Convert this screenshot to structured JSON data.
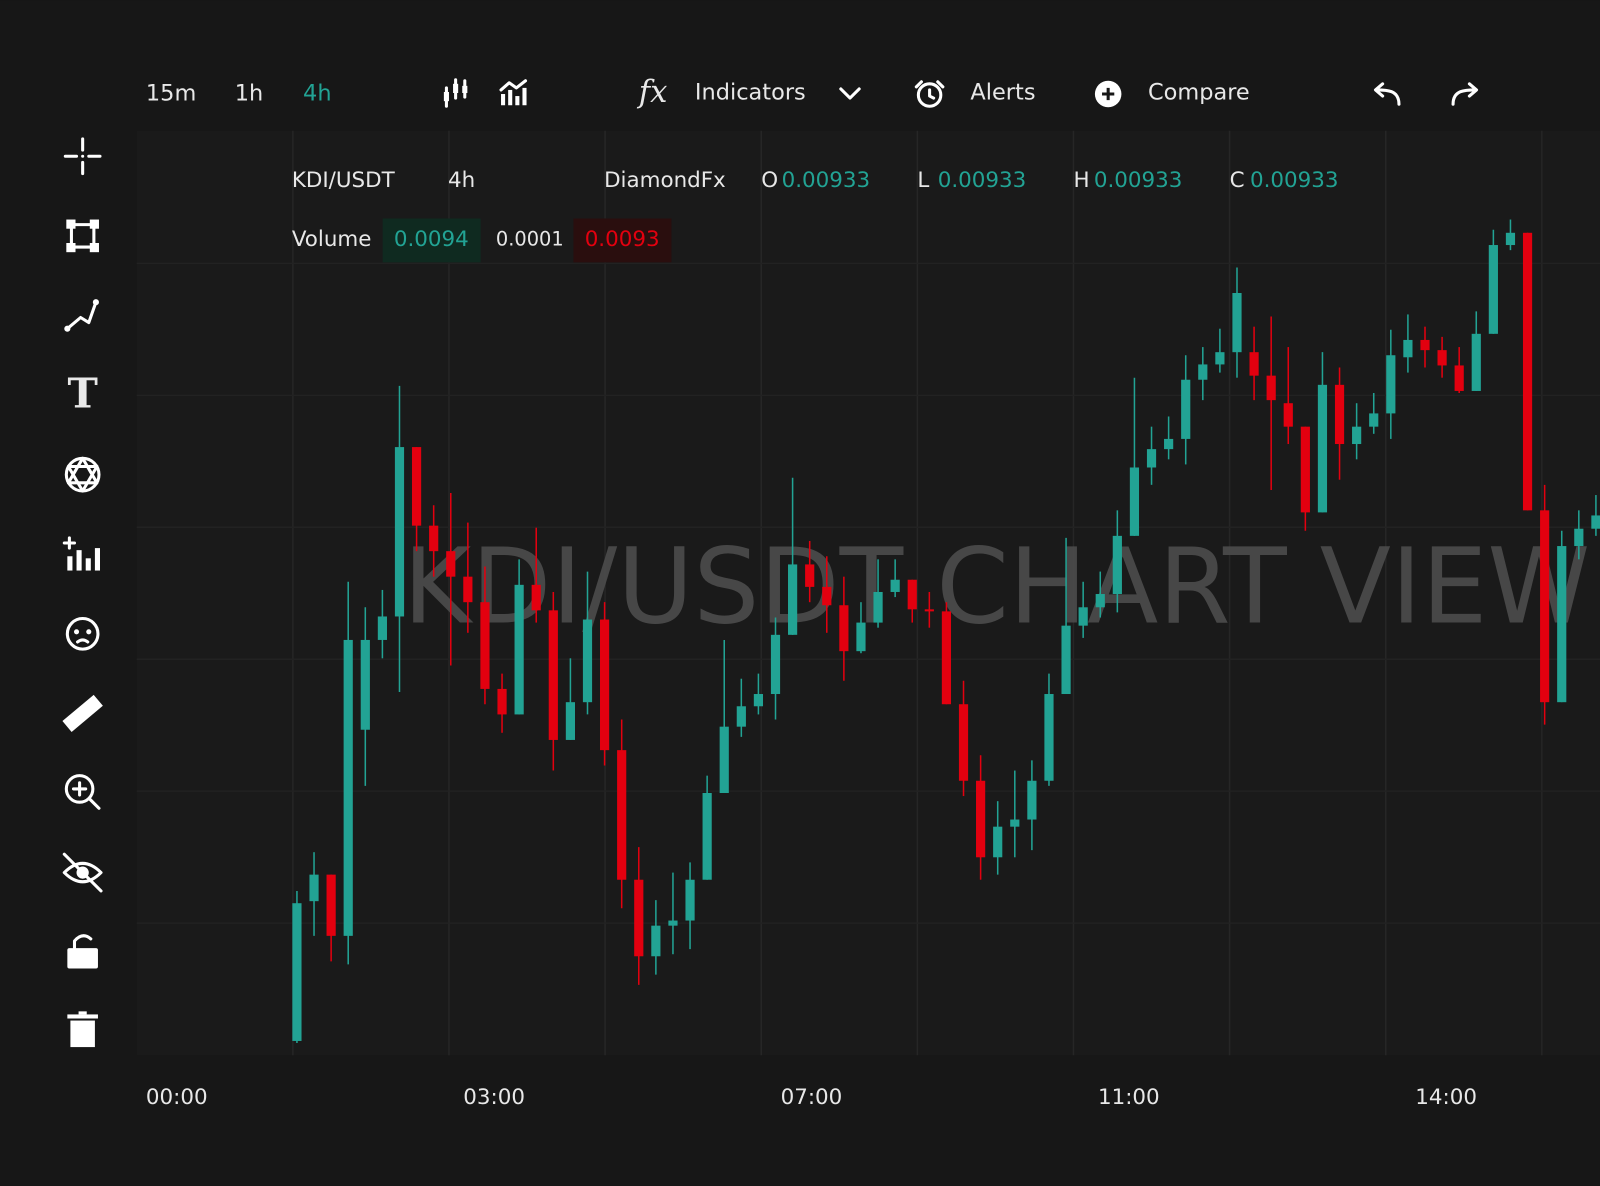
{
  "toolbar": {
    "intervals": [
      "15m",
      "1h",
      "4h"
    ],
    "buttons": [
      "Indicators",
      "Alerts",
      "Compare"
    ]
  },
  "legend": {
    "symbol": "KDI/USDT",
    "interval": "4h",
    "source": "DiamondFx",
    "ohlc": [
      {
        "label": "O",
        "value": 0.00933
      },
      {
        "label": "L",
        "value": 0.00933
      },
      {
        "label": "H",
        "value": 0.00933
      },
      {
        "label": "C",
        "value": 0.00933
      }
    ],
    "volume_label": "Volume",
    "volume": [
      0.0094,
      0.0001,
      0.0093
    ]
  },
  "watermark": "KDI/USDT CHART VIEW",
  "chart_data": {
    "type": "candlestick",
    "ylim": [
      0,
      90
    ],
    "up_color": "#22a394",
    "down_color": "#e3000f",
    "x_labels": [
      "00:00",
      "03:00",
      "07:00",
      "11:00",
      "14:00"
    ],
    "open": [
      1.4,
      15.1,
      17.7,
      11.7,
      31.9,
      40.7,
      43,
      59.6,
      51.9,
      49.4,
      46.9,
      44.4,
      35.9,
      33.4,
      46.1,
      43.6,
      30.9,
      34.6,
      42.7,
      29.9,
      17.2,
      9.7,
      12.7,
      13.2,
      17.2,
      25.7,
      32.2,
      34.2,
      35.4,
      41.2,
      48.1,
      45.9,
      44.1,
      39.6,
      42.4,
      45.4,
      46.6,
      43.7,
      43.5,
      34.4,
      26.9,
      19.4,
      22.4,
      23.1,
      26.9,
      35.4,
      42.1,
      43.9,
      45.2,
      50.9,
      57.6,
      59.4,
      60.4,
      66.2,
      67.7,
      68.9,
      68.9,
      66.6,
      63.9,
      61.6,
      53.2,
      65.7,
      59.9,
      61.6,
      62.9,
      68.4,
      70.1,
      69.1,
      67.6,
      65.1,
      70.7,
      79.4,
      80.6,
      53.4,
      34.6,
      49.9,
      51.6
    ],
    "high": [
      16.1,
      19.9,
      17.7,
      46.4,
      43.9,
      45.6,
      65.6,
      59.6,
      53.9,
      55.1,
      52.2,
      47.9,
      37.4,
      48.6,
      51.7,
      45.4,
      38.9,
      47.4,
      44.4,
      32.9,
      20.4,
      15.2,
      17.9,
      18.9,
      27.4,
      40.7,
      36.9,
      37.4,
      42.9,
      56.6,
      50.4,
      48.9,
      46.9,
      44.4,
      48.6,
      48.6,
      46.6,
      45.4,
      44.4,
      36.7,
      29.4,
      24.9,
      27.9,
      28.9,
      37.4,
      50.7,
      46.4,
      47.4,
      53.4,
      66.4,
      61.6,
      62.6,
      68.6,
      69.4,
      71.2,
      77.2,
      71.4,
      72.4,
      69.4,
      61.6,
      68.9,
      67.4,
      63.9,
      64.9,
      71.1,
      72.6,
      71.4,
      70.4,
      69.4,
      72.9,
      80.9,
      81.9,
      80.6,
      55.9,
      51.4,
      53.4,
      54.9
    ],
    "low": [
      1.2,
      11.7,
      9.2,
      8.9,
      26.4,
      38.9,
      35.6,
      49.4,
      46.9,
      38.2,
      41.4,
      34.4,
      31.6,
      33.4,
      42.4,
      27.9,
      30.9,
      33.4,
      28.4,
      14.4,
      6.9,
      7.9,
      9.9,
      10.4,
      17.2,
      25.7,
      31.2,
      33.4,
      32.9,
      41.2,
      44.4,
      41.4,
      36.7,
      39.4,
      41.9,
      44.9,
      42.4,
      41.9,
      34.4,
      25.4,
      17.2,
      17.7,
      19.4,
      20.1,
      26.4,
      35.4,
      40.9,
      42.9,
      43.4,
      50.9,
      55.9,
      58.4,
      57.9,
      64.2,
      66.9,
      66.4,
      64.2,
      55.4,
      59.9,
      51.4,
      53.2,
      56.4,
      58.4,
      60.9,
      60.4,
      66.9,
      67.4,
      66.4,
      64.9,
      65.1,
      70.7,
      78.9,
      53.4,
      32.4,
      34.6,
      48.6,
      50.9
    ],
    "close": [
      14.9,
      17.7,
      11.7,
      40.7,
      40.7,
      43,
      59.6,
      51.9,
      49.4,
      46.9,
      44.4,
      35.9,
      33.4,
      46.1,
      43.6,
      30.9,
      34.6,
      42.7,
      29.9,
      17.2,
      9.7,
      12.7,
      13.2,
      17.2,
      25.7,
      32.2,
      34.2,
      35.4,
      41.2,
      48.1,
      45.9,
      44.1,
      39.6,
      42.4,
      45.4,
      46.6,
      43.7,
      43.5,
      34.4,
      26.9,
      19.4,
      22.4,
      23.1,
      26.9,
      35.4,
      42.1,
      43.9,
      45.2,
      50.9,
      57.6,
      59.4,
      60.4,
      66.2,
      67.7,
      68.9,
      74.7,
      66.6,
      64.2,
      61.6,
      53.2,
      65.7,
      59.9,
      61.6,
      62.9,
      68.6,
      70.1,
      69.1,
      67.6,
      65.1,
      70.7,
      79.4,
      80.6,
      53.4,
      34.6,
      49.9,
      51.6,
      52.9
    ]
  }
}
